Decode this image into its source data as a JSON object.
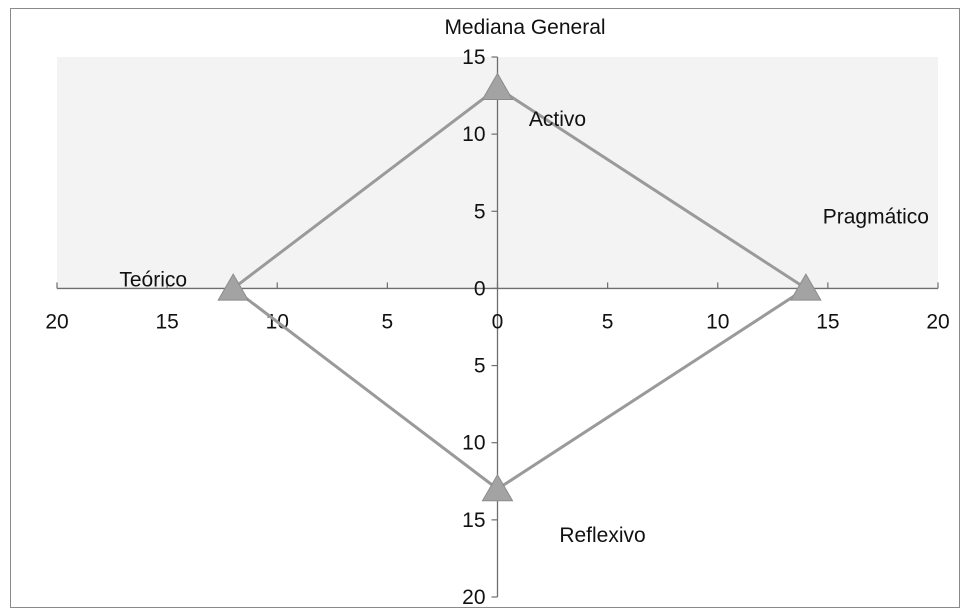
{
  "chart_data": {
    "type": "scatter",
    "title": "Mediana General",
    "subtitle": "",
    "xlabel": "",
    "ylabel": "",
    "xlim": [
      -20,
      20
    ],
    "ylim": [
      -20,
      15
    ],
    "x_ticks": [
      -20,
      -15,
      -10,
      -5,
      0,
      5,
      10,
      15,
      20
    ],
    "y_ticks": [
      -20,
      -15,
      -10,
      -5,
      0,
      5,
      10,
      15
    ],
    "tick_labels_absolute": true,
    "grid": false,
    "legend": "none",
    "series": [
      {
        "marker": "triangle",
        "closed": true,
        "color": "#9a9a9a",
        "points": [
          {
            "label": "Activo",
            "x": 0,
            "y": 13
          },
          {
            "label": "Pragmático",
            "x": 14,
            "y": 0
          },
          {
            "label": "Reflexivo",
            "x": 0,
            "y": -13
          },
          {
            "label": "Teórico",
            "x": -12,
            "y": 0
          }
        ]
      }
    ],
    "colors": {
      "plot_area": "#f3f3f3",
      "axis": "#6e6e6e",
      "line": "#9a9a9a",
      "marker": "#a3a3a3"
    }
  }
}
